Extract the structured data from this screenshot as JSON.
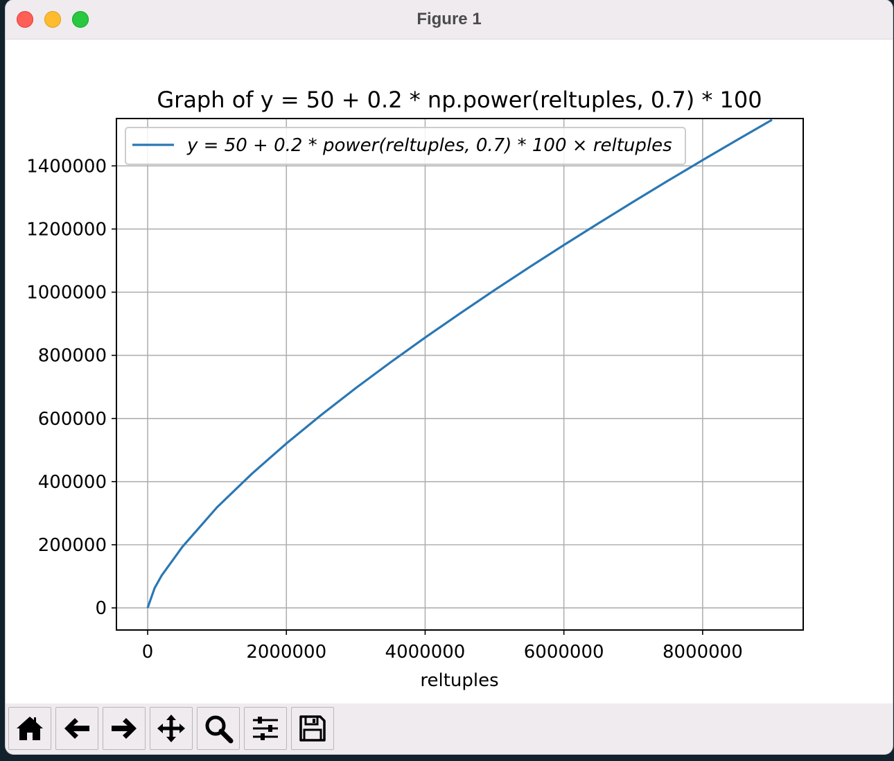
{
  "window": {
    "title": "Figure 1"
  },
  "toolbar": {
    "buttons": [
      {
        "name": "home-button",
        "icon": "home-icon"
      },
      {
        "name": "back-button",
        "icon": "arrow-left-icon"
      },
      {
        "name": "forward-button",
        "icon": "arrow-right-icon"
      },
      {
        "name": "pan-button",
        "icon": "move-icon"
      },
      {
        "name": "zoom-button",
        "icon": "magnifier-icon"
      },
      {
        "name": "configure-subplots-button",
        "icon": "sliders-icon"
      },
      {
        "name": "save-button",
        "icon": "floppy-disk-icon"
      }
    ]
  },
  "chart_data": {
    "type": "line",
    "title": "Graph of y = 50 + 0.2 * np.power(reltuples, 0.7) * 100",
    "xlabel": "reltuples",
    "ylabel": "",
    "xlim": [
      -450000,
      9450000
    ],
    "ylim": [
      -70000,
      1550000
    ],
    "xticks": [
      0,
      2000000,
      4000000,
      6000000,
      8000000
    ],
    "xtick_labels": [
      "0",
      "2000000",
      "4000000",
      "6000000",
      "8000000"
    ],
    "yticks": [
      0,
      200000,
      400000,
      600000,
      800000,
      1000000,
      1200000,
      1400000
    ],
    "ytick_labels": [
      "0",
      "200000",
      "400000",
      "600000",
      "800000",
      "1000000",
      "1200000",
      "1400000"
    ],
    "grid": true,
    "legend_position": "top-left",
    "series": [
      {
        "name": "y = 50 + 0.2 * power(reltuples, 0.7) * 100 × reltuples",
        "color": "#2a77b4",
        "x": [
          0,
          100000,
          200000,
          500000,
          1000000,
          1500000,
          2000000,
          2500000,
          3000000,
          3500000,
          4000000,
          4500000,
          5000000,
          5500000,
          6000000,
          6500000,
          7000000,
          7500000,
          8000000,
          8500000,
          9000000
        ],
        "y": [
          0,
          62800,
          102100,
          193300,
          318500,
          424300,
          520800,
          610800,
          696000,
          777600,
          856100,
          932300,
          1006400,
          1078700,
          1149300,
          1218400,
          1286300,
          1352900,
          1418300,
          1482600,
          1545900
        ]
      }
    ]
  }
}
